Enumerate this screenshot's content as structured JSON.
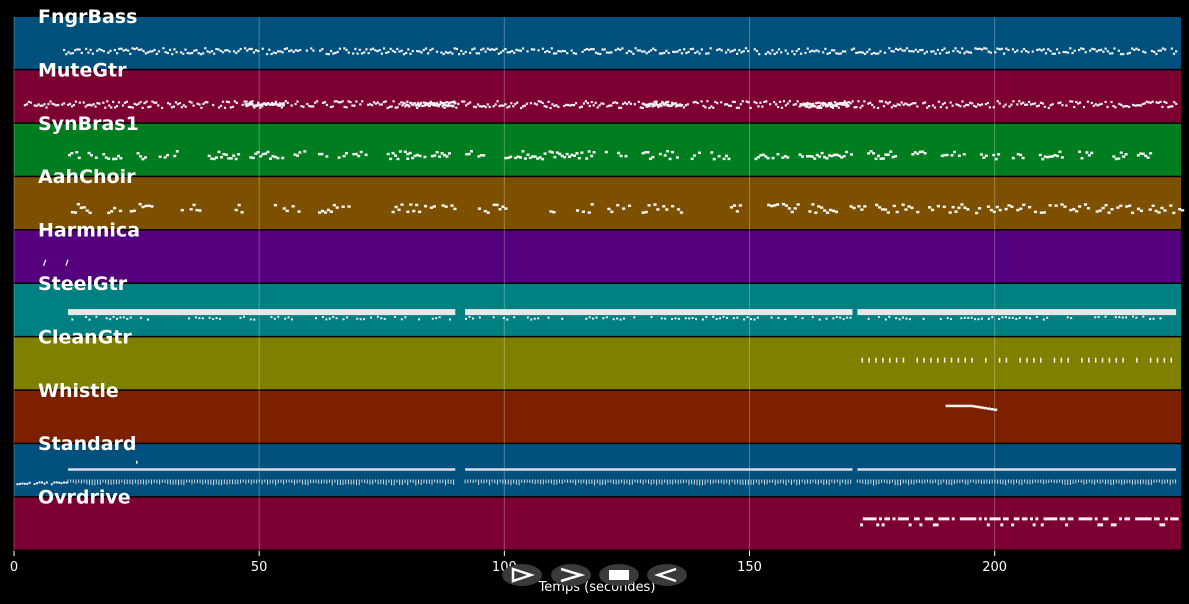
{
  "tracks": [
    {
      "name": "FngrBass",
      "color": "#00507e"
    },
    {
      "name": "MuteGtr",
      "color": "#7d0032"
    },
    {
      "name": "SynBras1",
      "color": "#007d1e"
    },
    {
      "name": "AahChoir",
      "color": "#7d5000"
    },
    {
      "name": "Harmnica",
      "color": "#55007d"
    },
    {
      "name": "SteelGtr",
      "color": "#008080"
    },
    {
      "name": "CleanGtr",
      "color": "#808000"
    },
    {
      "name": "Whistle",
      "color": "#7d2000"
    },
    {
      "name": "Standard",
      "color": "#00507e"
    },
    {
      "name": "Ovrdrive",
      "color": "#7d0032"
    }
  ],
  "axis": {
    "xlabel": "Temps (secondes)",
    "ticks": [
      "0",
      "50",
      "100",
      "150",
      "200"
    ],
    "tick_values": [
      0,
      50,
      100,
      150,
      200
    ],
    "xlim": [
      0,
      238
    ]
  },
  "controls": [
    {
      "icon": "play-icon",
      "label": "play"
    },
    {
      "icon": "fast-forward-icon",
      "label": "fast-forward"
    },
    {
      "icon": "stop-icon",
      "label": "stop"
    },
    {
      "icon": "rewind-icon",
      "label": "rewind"
    }
  ]
}
